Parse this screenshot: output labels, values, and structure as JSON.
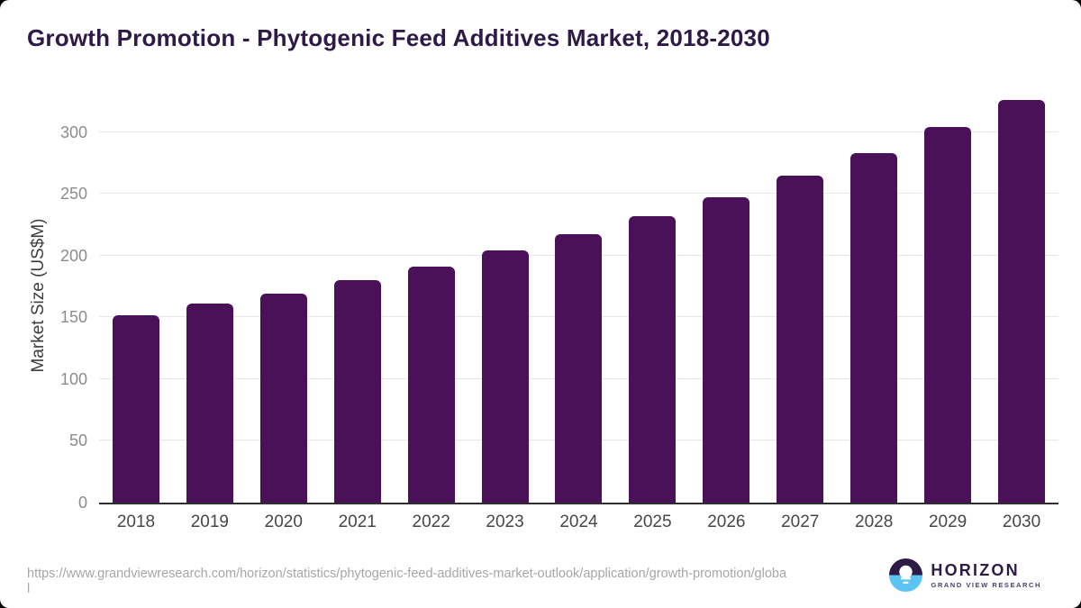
{
  "header": {
    "title": "Growth Promotion - Phytogenic Feed Additives Market, 2018-2030"
  },
  "chart_data": {
    "type": "bar",
    "title": "Growth Promotion - Phytogenic Feed Additives Market, 2018-2030",
    "categories": [
      "2018",
      "2019",
      "2020",
      "2021",
      "2022",
      "2023",
      "2024",
      "2025",
      "2026",
      "2027",
      "2028",
      "2029",
      "2030"
    ],
    "values": [
      152,
      161,
      169,
      180,
      191,
      204,
      217,
      232,
      247,
      265,
      283,
      304,
      326
    ],
    "xlabel": "",
    "ylabel": "Market Size (US$M)",
    "yticks": [
      0,
      50,
      100,
      150,
      200,
      250,
      300
    ],
    "ylim": [
      0,
      334
    ],
    "grid": "horizontal-only",
    "legend": "none",
    "bar_color": "#4a1158"
  },
  "footer": {
    "source_url": "https://www.grandviewresearch.com/horizon/statistics/phytogenic-feed-additives-market-outlook/application/growth-promotion/global"
  },
  "logo": {
    "brand": "HORIZON",
    "tagline": "GRAND VIEW RESEARCH"
  },
  "colors": {
    "title": "#2e1a47",
    "bar": "#4a1158",
    "gridline": "#e8e8e8",
    "axis_line": "#2e2e2e",
    "y_tick_label": "#8c8c8c",
    "x_tick_label": "#474747",
    "source_url": "#a6a6a6",
    "logo_dark": "#2d1b47",
    "logo_blue": "#5bc4f2"
  }
}
